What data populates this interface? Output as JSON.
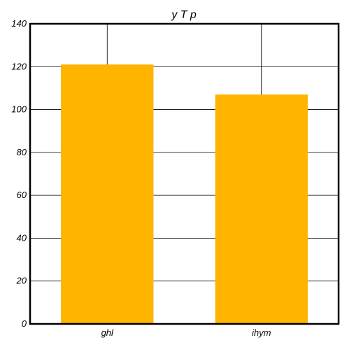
{
  "chart_data": {
    "type": "bar",
    "title": "y T p",
    "xlabel": "",
    "ylabel": "",
    "categories": [
      "ghl",
      "ihym"
    ],
    "values": [
      121,
      107
    ],
    "ylim": [
      0,
      140
    ],
    "yticks": [
      0,
      20,
      40,
      60,
      80,
      100,
      120,
      140
    ],
    "grid": true,
    "legend": "none",
    "colors": {
      "bar": "#ffb400",
      "axis": "#000000",
      "grid": "#000000",
      "background": "#ffffff"
    }
  }
}
